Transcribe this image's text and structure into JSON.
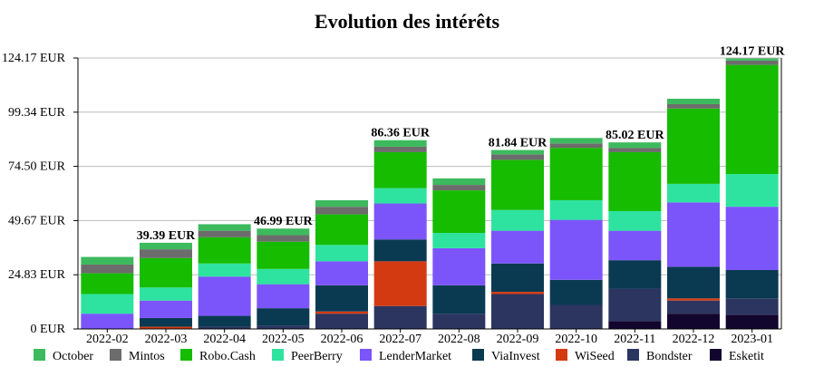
{
  "chart_data": {
    "type": "bar",
    "stacked": true,
    "title": "Evolution des intérêts",
    "xlabel": "",
    "ylabel": "",
    "ylim": [
      0,
      124.17
    ],
    "y_ticks": [
      "0 EUR",
      "24.83 EUR",
      "49.67 EUR",
      "74.50 EUR",
      "99.34 EUR",
      "124.17 EUR"
    ],
    "y_tick_values": [
      0,
      24.83,
      49.67,
      74.5,
      99.34,
      124.17
    ],
    "grid": "horizontal",
    "legend_position": "bottom",
    "categories": [
      "2022-02",
      "2022-03",
      "2022-04",
      "2022-05",
      "2022-06",
      "2022-07",
      "2022-08",
      "2022-09",
      "2022-10",
      "2022-11",
      "2022-12",
      "2023-01"
    ],
    "series": [
      {
        "name": "Esketit",
        "color": "#12052e",
        "values": [
          0,
          0,
          0,
          0,
          0,
          0,
          0,
          0,
          0,
          3.5,
          7,
          6.5
        ]
      },
      {
        "name": "Bondster",
        "color": "#2b3560",
        "values": [
          0,
          0,
          1,
          1.5,
          7,
          10.5,
          7,
          16,
          11,
          15,
          6,
          7.5
        ]
      },
      {
        "name": "WiSeed",
        "color": "#d43a12",
        "values": [
          0,
          1,
          0,
          0,
          1,
          20.5,
          0,
          1,
          0,
          0,
          1,
          0
        ]
      },
      {
        "name": "ViaInvest",
        "color": "#0a3a52",
        "values": [
          0,
          4,
          5,
          8,
          12,
          10,
          13,
          13,
          11.5,
          13,
          14.5,
          13
        ]
      },
      {
        "name": "LenderMarket",
        "color": "#7b55fa",
        "values": [
          7,
          8,
          18,
          11,
          11,
          16.5,
          17,
          15,
          27.5,
          13.5,
          29.5,
          29
        ]
      },
      {
        "name": "PeerBerry",
        "color": "#2ee3a0",
        "values": [
          9,
          6,
          6,
          7,
          7.5,
          7,
          7,
          9.5,
          9,
          9,
          8.5,
          15
        ]
      },
      {
        "name": "Robo.Cash",
        "color": "#15bc00",
        "values": [
          9.5,
          13.5,
          12,
          12.5,
          14,
          16.5,
          19.5,
          23,
          24,
          27,
          34.5,
          50
        ]
      },
      {
        "name": "Mintos",
        "color": "#6c6c6c",
        "values": [
          4,
          4,
          3,
          3,
          3.5,
          2.5,
          2.5,
          2.5,
          2,
          2,
          2,
          2
        ]
      },
      {
        "name": "October",
        "color": "#3dba5e",
        "values": [
          3.5,
          3,
          3,
          3,
          3,
          3,
          3,
          2,
          2.5,
          2.5,
          2.5,
          1
        ]
      }
    ],
    "total_labels": [
      {
        "category": "2022-03",
        "text": "39.39 EUR"
      },
      {
        "category": "2022-05",
        "text": "46.99 EUR"
      },
      {
        "category": "2022-07",
        "text": "86.36 EUR"
      },
      {
        "category": "2022-09",
        "text": "81.84 EUR"
      },
      {
        "category": "2022-11",
        "text": "85.02 EUR"
      },
      {
        "category": "2023-01",
        "text": "124.17 EUR"
      }
    ],
    "legend_order": [
      "October",
      "Mintos",
      "Robo.Cash",
      "PeerBerry",
      "LenderMarket",
      "ViaInvest",
      "WiSeed",
      "Bondster",
      "Esketit"
    ]
  }
}
